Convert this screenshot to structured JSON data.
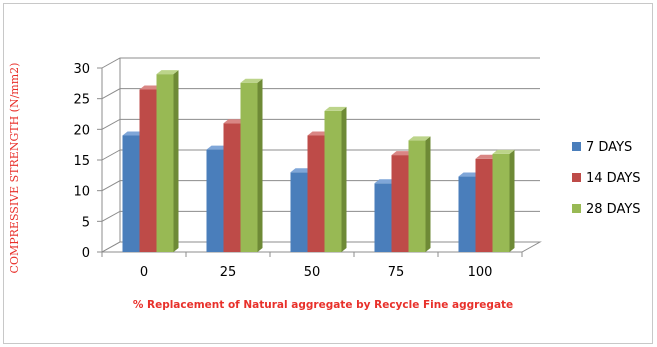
{
  "chart_data": {
    "type": "bar",
    "title": "",
    "categories": [
      "0",
      "25",
      "50",
      "75",
      "100"
    ],
    "series": [
      {
        "name": "7 DAYS",
        "values": [
          19,
          16.7,
          13,
          11.2,
          12.3
        ]
      },
      {
        "name": "14 DAYS",
        "values": [
          26.5,
          21,
          19,
          15.8,
          15.2
        ]
      },
      {
        "name": "28 DAYS",
        "values": [
          29,
          27.6,
          23,
          18.2,
          16
        ]
      }
    ],
    "xlabel": "% Replacement of Natural aggregate by Recycle Fine aggregate",
    "ylabel": "COMPRESSIVE STRENGTH (N/mm2)",
    "ylim": [
      0,
      30
    ],
    "yticks": [
      "0",
      "5",
      "10",
      "15",
      "20",
      "25",
      "30"
    ],
    "grid": true,
    "legend_position": "right",
    "colors": {
      "7 DAYS": {
        "front": "#4a7ebb",
        "side": "#2f5a8f",
        "top": "#7fa6d8"
      },
      "14 DAYS": {
        "front": "#be4b48",
        "side": "#8d2f2d",
        "top": "#d98684"
      },
      "28 DAYS": {
        "front": "#98b954",
        "side": "#6e8a36",
        "top": "#bcd48a"
      }
    }
  }
}
